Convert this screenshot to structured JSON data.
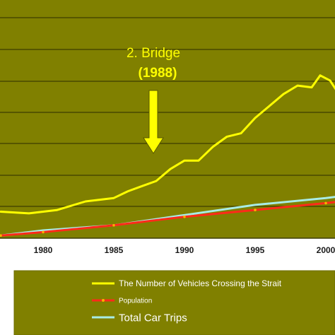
{
  "chart_data": {
    "type": "line",
    "title": "",
    "xlabel": "",
    "ylabel": "",
    "x_ticks": [
      "1980",
      "1985",
      "1990",
      "1995",
      "2000"
    ],
    "xlim": [
      1977,
      2001
    ],
    "ylim": [
      0,
      100
    ],
    "grid": true,
    "legend_position": "bottom",
    "annotation": {
      "line1": "2. Bridge",
      "line2": "(1988)",
      "x": 1988
    },
    "series": [
      {
        "name": "The Number of Vehicles Crossing the Strait",
        "color": "#ffff00",
        "x": [
          1977,
          1979,
          1981,
          1983,
          1984,
          1985,
          1986,
          1987,
          1988,
          1989,
          1990,
          1991,
          1992,
          1993,
          1994,
          1995,
          1996,
          1997,
          1998,
          1999,
          1999.6,
          2000.3,
          2001
        ],
        "y": [
          11,
          10,
          12,
          17,
          18,
          19,
          23,
          26,
          29,
          36,
          41,
          41,
          49,
          55,
          57,
          66,
          73,
          80,
          85,
          84,
          91,
          88,
          79
        ]
      },
      {
        "name": "Population",
        "color": "#ff2a1a",
        "x": [
          1977,
          1980,
          1985,
          1990,
          1995,
          2000,
          2001
        ],
        "y": [
          -3,
          -1,
          3,
          8,
          12,
          16,
          17
        ]
      },
      {
        "name": "Total Car Trips",
        "color": "#a8ece6",
        "x": [
          1977,
          1980,
          1985,
          1990,
          1995,
          2000,
          2001
        ],
        "y": [
          -3,
          0,
          3,
          9,
          15,
          19,
          20
        ]
      }
    ]
  },
  "colors": {
    "plot_bg": "#808000",
    "legend_bg": "#808000",
    "grid": "#3d3d00",
    "outer_border": "#7a7a7a"
  }
}
